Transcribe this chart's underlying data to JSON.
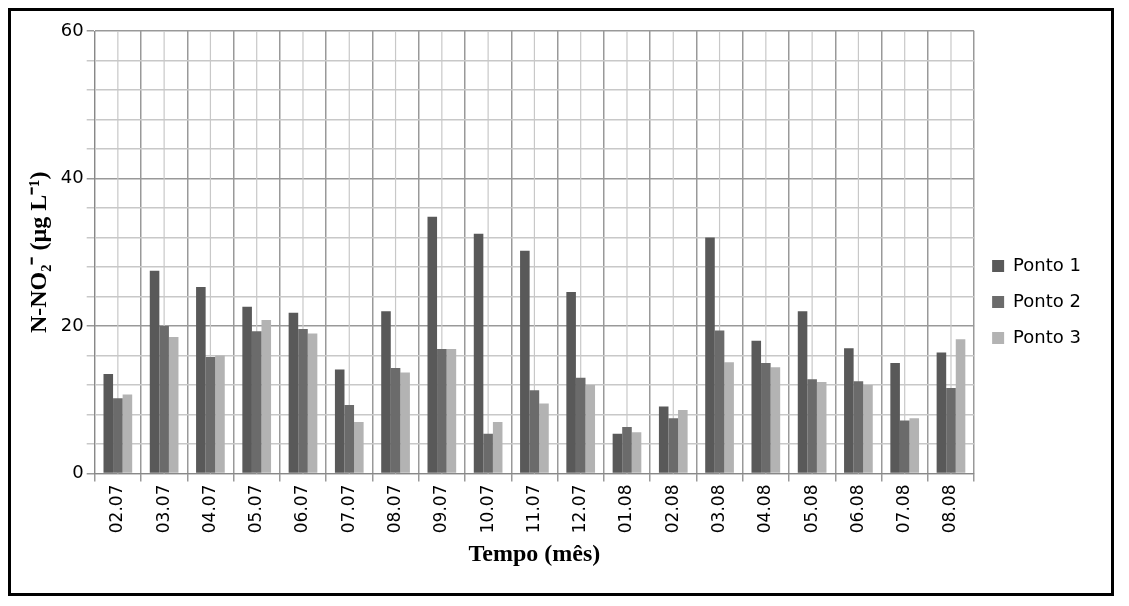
{
  "chart_data": {
    "type": "bar",
    "xlabel": "Tempo (mês)",
    "ylabel": "N-NO₂⁻ (µg L⁻¹)",
    "categories": [
      "02.07",
      "03.07",
      "04.07",
      "05.07",
      "06.07",
      "07.07",
      "08.07",
      "09.07",
      "10.07",
      "11.07",
      "12.07",
      "01.08",
      "02.08",
      "03.08",
      "04.08",
      "05.08",
      "06.08",
      "07.08",
      "08.08"
    ],
    "series": [
      {
        "name": "Ponto 1",
        "color": "#595959",
        "values": [
          13.5,
          27.5,
          25.3,
          22.6,
          21.8,
          14.1,
          22,
          34.8,
          32.5,
          30.2,
          24.6,
          5.4,
          9.1,
          32,
          18,
          22,
          17,
          15,
          16.4
        ]
      },
      {
        "name": "Ponto 2",
        "color": "#6b6b6b",
        "values": [
          10.2,
          20,
          15.8,
          19.3,
          19.6,
          9.3,
          14.3,
          16.9,
          5.4,
          11.3,
          13,
          6.3,
          7.5,
          19.4,
          15,
          12.8,
          12.5,
          7.2,
          11.6
        ]
      },
      {
        "name": "Ponto 3",
        "color": "#b3b3b3",
        "values": [
          10.7,
          18.5,
          16,
          20.8,
          19,
          7,
          13.7,
          16.9,
          7,
          9.5,
          12,
          5.6,
          8.6,
          15.1,
          14.4,
          12.4,
          12,
          7.5,
          18.2
        ]
      }
    ],
    "ylim": [
      0,
      60
    ],
    "yticks": [
      0,
      {
        "value": 4,
        "label": null
      },
      {
        "value": 8,
        "label": null
      },
      {
        "value": 12,
        "label": null
      },
      {
        "value": 16,
        "label": null
      },
      20,
      {
        "value": 24,
        "label": null
      },
      {
        "value": 28,
        "label": null
      },
      {
        "value": 32,
        "label": null
      },
      {
        "value": 36,
        "label": null
      },
      40,
      {
        "value": 44,
        "label": null
      },
      {
        "value": 48,
        "label": null
      },
      {
        "value": 52,
        "label": null
      },
      {
        "value": 56,
        "label": null
      },
      60
    ],
    "grid": true,
    "legend": "right"
  }
}
